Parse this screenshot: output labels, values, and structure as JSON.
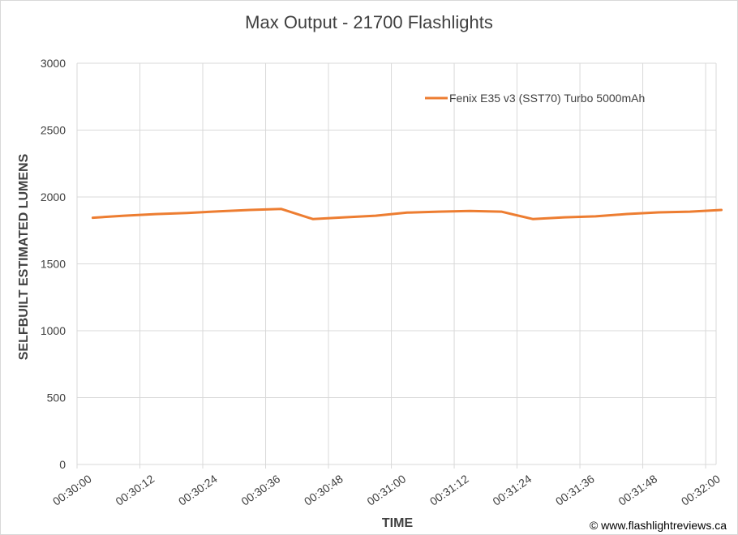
{
  "chart_data": {
    "type": "line",
    "title": "Max Output - 21700 Flashlights",
    "xlabel": "TIME",
    "ylabel": "SELFBUILT ESTIMATED LUMENS",
    "ylim": [
      0,
      3000
    ],
    "yticks": [
      0,
      500,
      1000,
      1500,
      2000,
      2500,
      3000
    ],
    "xticks": [
      "00:30:00",
      "00:30:12",
      "00:30:24",
      "00:30:36",
      "00:30:48",
      "00:31:00",
      "00:31:12",
      "00:31:24",
      "00:31:36",
      "00:31:48",
      "00:32:00"
    ],
    "grid": true,
    "legend_position": "top-right",
    "series": [
      {
        "name": "Fenix E35 v3 (SST70) Turbo 5000mAh",
        "color": "#ed7d31",
        "x": [
          "00:30:03",
          "00:30:09",
          "00:30:15",
          "00:30:21",
          "00:30:27",
          "00:30:33",
          "00:30:39",
          "00:30:45",
          "00:30:51",
          "00:30:57",
          "00:31:03",
          "00:31:09",
          "00:31:15",
          "00:31:21",
          "00:31:27",
          "00:31:33",
          "00:31:39",
          "00:31:45",
          "00:31:51",
          "00:31:57",
          "00:32:03"
        ],
        "values": [
          1845,
          1860,
          1872,
          1880,
          1893,
          1903,
          1910,
          1835,
          1848,
          1860,
          1883,
          1890,
          1895,
          1890,
          1835,
          1848,
          1855,
          1873,
          1885,
          1890,
          1903
        ]
      }
    ]
  },
  "credit": "© www.flashlightreviews.ca"
}
